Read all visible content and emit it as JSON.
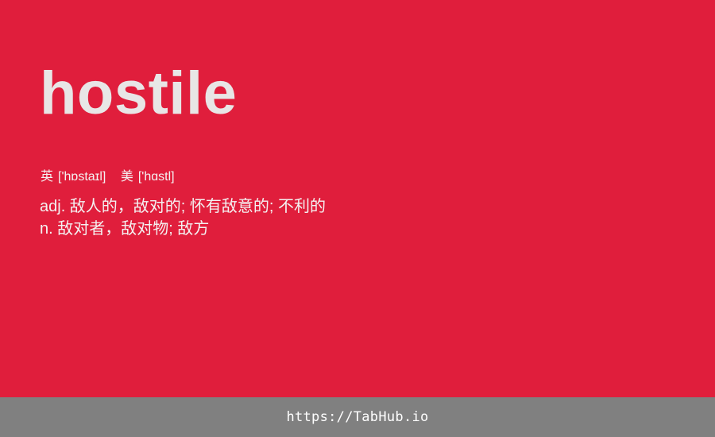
{
  "entry": {
    "word": "hostile",
    "phonetics": {
      "uk_label": "英",
      "uk": "['hɒstaɪl]",
      "us_label": "美",
      "us": "['hɑstl]"
    },
    "definitions": [
      "adj. 敌人的，敌对的; 怀有敌意的; 不利的",
      "n. 敌对者，敌对物; 敌方"
    ]
  },
  "footer": {
    "link_text": "https://TabHub.io"
  },
  "colors": {
    "background": "#e01e3c",
    "footer_background": "#808080",
    "word_text": "#e8e6e6",
    "body_text": "#f4f1f1"
  }
}
